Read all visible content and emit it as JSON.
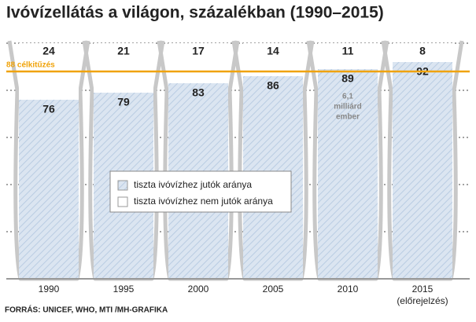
{
  "chart_data": {
    "type": "bar",
    "stacked": true,
    "title": "Ivóvízellátás a világon, százalékban (1990–2015)",
    "categories": [
      "1990",
      "1995",
      "2000",
      "2005",
      "2010",
      "2015"
    ],
    "forecast_label": "(előrejelzés)",
    "series": [
      {
        "name": "tiszta ivóvízhez jutók aránya",
        "color": "#dbe5f1",
        "values": [
          76,
          79,
          83,
          86,
          89,
          92
        ]
      },
      {
        "name": "tiszta ivóvízhez nem jutók aránya",
        "color": "#ffffff",
        "values": [
          24,
          21,
          17,
          14,
          11,
          8
        ]
      }
    ],
    "ylim": [
      0,
      100
    ],
    "yticks": [
      0,
      20,
      40,
      60,
      80,
      100
    ],
    "grid": true,
    "target": {
      "value": 88,
      "label": "88 célkitűzés",
      "color": "#f0a30a"
    },
    "annotation": [
      "6,1",
      "milliárd",
      "ember"
    ],
    "source": "FORRÁS: UNICEF, WHO, MTI /MH-GRAFIKA"
  }
}
